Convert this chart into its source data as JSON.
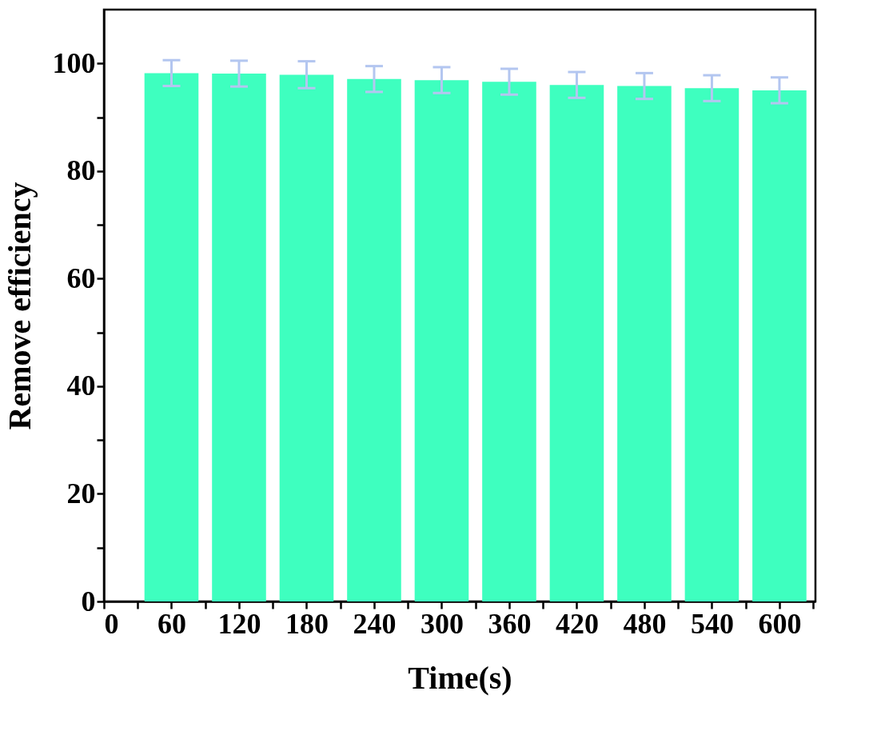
{
  "chart_data": {
    "type": "bar",
    "xlabel": "Time(s)",
    "ylabel": "Remove efficiency",
    "x": [
      60,
      120,
      180,
      240,
      300,
      360,
      420,
      480,
      540,
      600
    ],
    "series": [
      {
        "color": "#3effbf",
        "values": [
          98.2,
          98.1,
          97.9,
          97.1,
          96.9,
          96.6,
          96.0,
          95.8,
          95.4,
          95.0
        ],
        "errors": [
          2.4,
          2.4,
          2.5,
          2.4,
          2.4,
          2.4,
          2.4,
          2.4,
          2.4,
          2.4
        ]
      }
    ],
    "xlim": [
      0,
      632
    ],
    "xticks": [
      0,
      {
        "value": 30,
        "label": null
      },
      60,
      {
        "value": 90,
        "label": null
      },
      120,
      {
        "value": 150,
        "label": null
      },
      180,
      {
        "value": 210,
        "label": null
      },
      240,
      {
        "value": 270,
        "label": null
      },
      300,
      {
        "value": 330,
        "label": null
      },
      360,
      {
        "value": 390,
        "label": null
      },
      420,
      {
        "value": 450,
        "label": null
      },
      480,
      {
        "value": 510,
        "label": null
      },
      540,
      {
        "value": 570,
        "label": null
      },
      600,
      {
        "value": 630,
        "label": null
      }
    ],
    "ylim": [
      0,
      110
    ],
    "yticks": [
      0,
      {
        "value": 10,
        "label": null
      },
      20,
      {
        "value": 30,
        "label": null
      },
      40,
      {
        "value": 50,
        "label": null
      },
      60,
      {
        "value": 70,
        "label": null
      },
      80,
      {
        "value": 90,
        "label": null
      },
      100
    ],
    "grid": false
  }
}
